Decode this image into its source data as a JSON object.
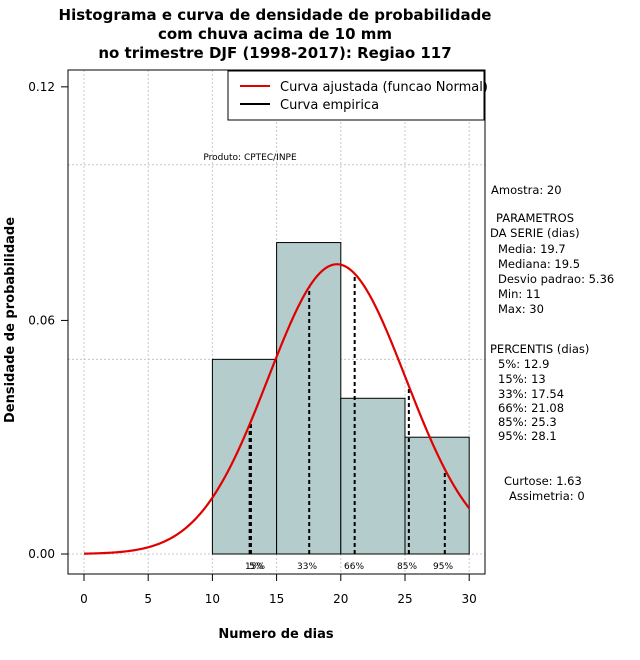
{
  "chart_data": {
    "type": "histogram",
    "title_lines": [
      "Histograma e curva de densidade de probabilidade",
      "com chuva acima de 10 mm",
      "no trimestre DJF (1998-2017): Regiao 117"
    ],
    "xlabel": "Numero de dias",
    "ylabel": "Densidade de probabilidade",
    "xlim": [
      -1,
      32
    ],
    "ylim": [
      -0.004,
      0.124
    ],
    "x_ticks": [
      "0",
      "5",
      "10",
      "15",
      "20",
      "25",
      "30"
    ],
    "x_tick_values": [
      0,
      5,
      10,
      15,
      20,
      25,
      30
    ],
    "y_ticks": [
      "0.00",
      "0.06",
      "0.12"
    ],
    "y_tick_values": [
      0.0,
      0.06,
      0.12
    ],
    "hgrid_values": [
      0.0,
      0.05,
      0.1
    ],
    "vgrid_values": [
      0,
      5,
      10,
      15,
      20,
      25,
      30
    ],
    "bins": [
      {
        "from": 10,
        "to": 15,
        "density": 0.05
      },
      {
        "from": 15,
        "to": 20,
        "density": 0.08
      },
      {
        "from": 20,
        "to": 25,
        "density": 0.04
      },
      {
        "from": 25,
        "to": 30,
        "density": 0.03
      }
    ],
    "normal_fit": {
      "mean": 19.7,
      "sd": 5.36,
      "from": 0,
      "to": 30,
      "color": "#e00000"
    },
    "percentile_lines": [
      {
        "label": "5%",
        "value": 12.9
      },
      {
        "label": "15%",
        "value": 13.0
      },
      {
        "label": "33%",
        "value": 17.54
      },
      {
        "label": "66%",
        "value": 21.08
      },
      {
        "label": "85%",
        "value": 25.3
      },
      {
        "label": "95%",
        "value": 28.1
      }
    ],
    "percentile_label_text": [
      "15%",
      "5%",
      "33%",
      "66%",
      "85%",
      "95%"
    ],
    "legend": [
      {
        "label": "Curva ajustada (funcao Normal)",
        "color": "#e00000"
      },
      {
        "label": "Curva empirica",
        "color": "#000000"
      }
    ],
    "product_note": "Produto: CPTEC/INPE",
    "bar_fill": "#b5cccc"
  },
  "side_panel": {
    "sample": "Amostra: 20",
    "params_title_1": "PARAMETROS",
    "params_title_2": "DA SERIE (dias)",
    "media": "Media: 19.7",
    "mediana": "Mediana: 19.5",
    "desvio": "Desvio padrao: 5.36",
    "min": "Min: 11",
    "max": "Max: 30",
    "percentis_title": "PERCENTIS (dias)",
    "p5": "5%: 12.9",
    "p15": "15%: 13",
    "p33": "33%: 17.54",
    "p66": "66%: 21.08",
    "p85": "85%: 25.3",
    "p95": "95%: 28.1",
    "curtose": "Curtose: 1.63",
    "assimetria": "Assimetria: 0"
  }
}
